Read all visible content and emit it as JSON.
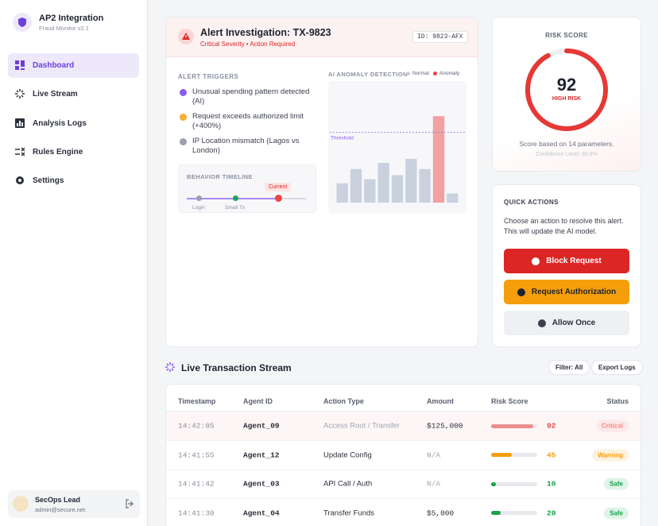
{
  "sidebar": {
    "app_title": "AP2 Integration",
    "app_subtitle": "Fraud Monitor v2.1",
    "nav": [
      "Dashboard",
      "Live Stream",
      "Analysis Logs",
      "Rules Engine",
      "Settings"
    ],
    "user": {
      "name": "SecOps Lead",
      "email": "admin@secure.net"
    }
  },
  "alert": {
    "title": "Alert Investigation: TX-9823",
    "subtitle": "Critical Severity • Action Required",
    "id": "ID: 9823-AFX",
    "triggers_heading": "ALERT TRIGGERS",
    "triggers": [
      {
        "text": "Unusual spending pattern detected (AI)",
        "color": "#8b5cf6"
      },
      {
        "text": "Request exceeds authorized limit (+400%)",
        "color": "#f5b031"
      },
      {
        "text": "IP Location mismatch (Lagos vs London)",
        "color": "#9aa0ac"
      }
    ],
    "timeline": {
      "heading": "BEHAVIOR TIMELINE",
      "labels": [
        "Login",
        "Small Tx"
      ],
      "current": "Current"
    },
    "anomaly_chart": {
      "type": "bar",
      "title": "AI ANOMALY DETECTION",
      "ylim": [
        0,
        100
      ],
      "threshold": {
        "label": "Threshold",
        "value": 69
      },
      "series": [
        {
          "name": "Normal",
          "color": "#c9d1df",
          "values": [
            19,
            33,
            23,
            39,
            27,
            43,
            33,
            null,
            9
          ]
        },
        {
          "name": "Anomaly",
          "color": "#f2a1a1",
          "values": [
            null,
            null,
            null,
            null,
            null,
            null,
            null,
            85,
            null
          ]
        }
      ]
    }
  },
  "risk": {
    "heading": "RISK SCORE",
    "score": 92,
    "range": [
      0,
      100
    ],
    "level": "HIGH RISK",
    "basis": "Score based on 14 parameters.",
    "confidence": "Confidence Level: 98.8%"
  },
  "actions": {
    "heading": "QUICK ACTIONS",
    "description": "Choose an action to resolve this alert. This will update the AI model.",
    "buttons": [
      "Block Request",
      "Request Authorization",
      "Allow Once"
    ]
  },
  "stream": {
    "title": "Live Transaction Stream",
    "filter": "Filter: All",
    "export": "Export Logs",
    "columns": [
      "Timestamp",
      "Agent ID",
      "Action Type",
      "Amount",
      "Risk Score",
      "Status"
    ],
    "risk_range": [
      0,
      100
    ],
    "rows": [
      {
        "timestamp": "14:42:05",
        "agent": "Agent_09",
        "action": "Access Root / Transfer",
        "amount": "$125,000",
        "risk": 92,
        "status": "Critical",
        "color": "#ef4444"
      },
      {
        "timestamp": "14:41:55",
        "agent": "Agent_12",
        "action": "Update Config",
        "amount": "N/A",
        "risk": 45,
        "status": "Warning",
        "color": "#f59e0b"
      },
      {
        "timestamp": "14:41:42",
        "agent": "Agent_03",
        "action": "API Call / Auth",
        "amount": "N/A",
        "risk": 10,
        "status": "Safe",
        "color": "#16a34a"
      },
      {
        "timestamp": "14:41:30",
        "agent": "Agent_04",
        "action": "Transfer Funds",
        "amount": "$5,000",
        "risk": 20,
        "status": "Safe",
        "color": "#16a34a"
      }
    ]
  }
}
